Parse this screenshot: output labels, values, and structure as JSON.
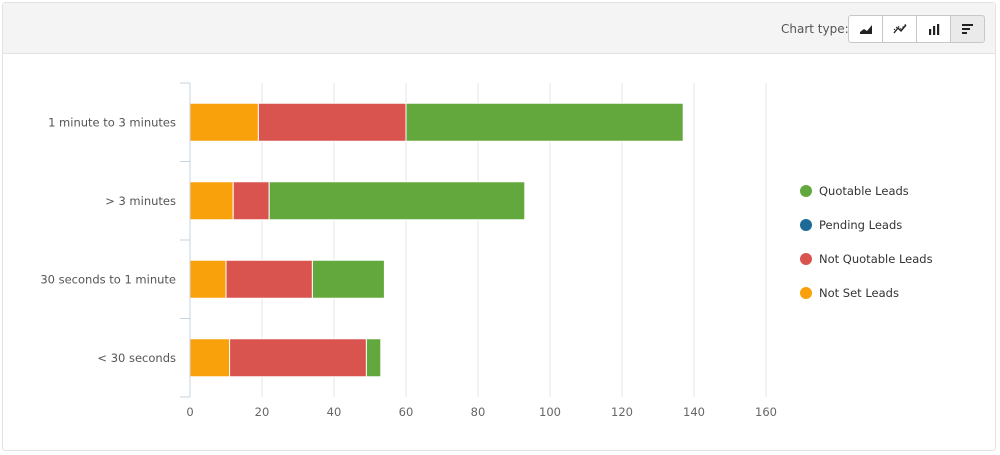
{
  "toolbar": {
    "chart_type_label": "Chart type:",
    "buttons": [
      {
        "icon": "area-chart-icon",
        "active": false
      },
      {
        "icon": "line-chart-icon",
        "active": false
      },
      {
        "icon": "column-chart-icon",
        "active": false
      },
      {
        "icon": "bar-chart-icon",
        "active": true
      }
    ]
  },
  "colors": {
    "quotable": "#63a83d",
    "pending": "#1d6a96",
    "not_quotable": "#d9534f",
    "not_set": "#f9a10b"
  },
  "chart_data": {
    "type": "bar",
    "orientation": "horizontal",
    "stacked": true,
    "categories": [
      "1 minute to 3 minutes",
      "> 3 minutes",
      "30 seconds to 1 minute",
      "< 30 seconds"
    ],
    "series": [
      {
        "name": "Not Set Leads",
        "color": "#f9a10b",
        "values": [
          19,
          12,
          10,
          11
        ]
      },
      {
        "name": "Not Quotable Leads",
        "color": "#d9534f",
        "values": [
          41,
          10,
          24,
          38
        ]
      },
      {
        "name": "Pending Leads",
        "color": "#1d6a96",
        "values": [
          0,
          0,
          0,
          0
        ]
      },
      {
        "name": "Quotable Leads",
        "color": "#63a83d",
        "values": [
          77,
          71,
          20,
          4
        ]
      }
    ],
    "xlim": [
      0,
      160
    ],
    "xticks": [
      "0",
      "20",
      "40",
      "60",
      "80",
      "100",
      "120",
      "140",
      "160"
    ],
    "grid": true,
    "legend": {
      "position": "right",
      "entries": [
        {
          "name": "Quotable Leads",
          "color": "#63a83d"
        },
        {
          "name": "Pending Leads",
          "color": "#1d6a96"
        },
        {
          "name": "Not Quotable Leads",
          "color": "#d9534f"
        },
        {
          "name": "Not Set Leads",
          "color": "#f9a10b"
        }
      ]
    }
  }
}
